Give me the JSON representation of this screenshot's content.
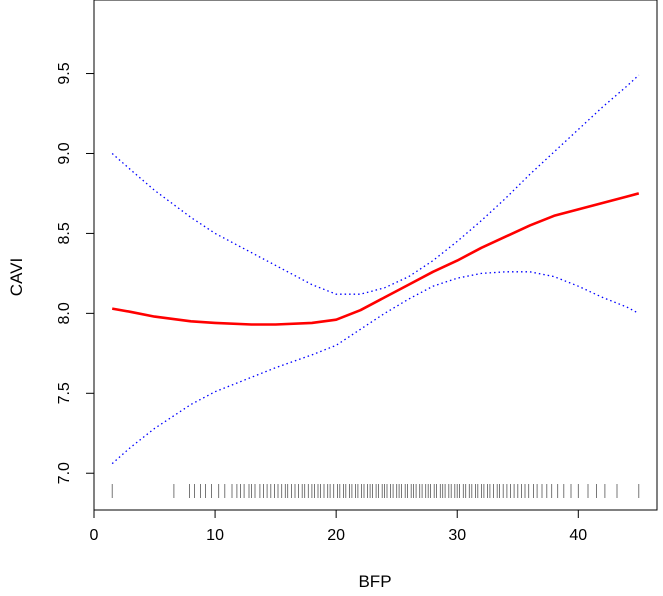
{
  "chart_data": {
    "type": "line",
    "title": "",
    "xlabel": "BFP",
    "ylabel": "CAVI",
    "xlim": [
      0.0,
      46.5
    ],
    "ylim": [
      6.77,
      9.96
    ],
    "xticks": [
      0,
      10,
      20,
      30,
      40
    ],
    "xtick_labels": [
      "0",
      "10",
      "20",
      "30",
      "40"
    ],
    "yticks": [
      7.0,
      7.5,
      8.0,
      8.5,
      9.0,
      9.5
    ],
    "ytick_labels": [
      "7.0",
      "7.5",
      "8.0",
      "8.5",
      "9.0",
      "9.5"
    ],
    "grid": false,
    "legend": "none",
    "series": [
      {
        "role": "fit",
        "color": "#ff0000",
        "style": "solid",
        "x": [
          1.5,
          3,
          5,
          8,
          10,
          13,
          15,
          18,
          20,
          22,
          24,
          26,
          28,
          30,
          32,
          34,
          36,
          38,
          40,
          42,
          44,
          45
        ],
        "y": [
          8.03,
          8.01,
          7.98,
          7.95,
          7.94,
          7.93,
          7.93,
          7.94,
          7.96,
          8.02,
          8.1,
          8.18,
          8.26,
          8.33,
          8.41,
          8.48,
          8.55,
          8.61,
          8.65,
          8.69,
          8.73,
          8.75
        ]
      },
      {
        "role": "upper-ci",
        "color": "#0000ff",
        "style": "dotted",
        "x": [
          1.5,
          3,
          5,
          8,
          10,
          13,
          15,
          18,
          20,
          22,
          24,
          26,
          28,
          30,
          32,
          34,
          36,
          38,
          40,
          42,
          44,
          45
        ],
        "y": [
          9.0,
          8.9,
          8.77,
          8.6,
          8.5,
          8.38,
          8.3,
          8.18,
          8.12,
          8.12,
          8.16,
          8.23,
          8.33,
          8.45,
          8.58,
          8.72,
          8.87,
          9.01,
          9.15,
          9.29,
          9.42,
          9.49
        ]
      },
      {
        "role": "lower-ci",
        "color": "#0000ff",
        "style": "dotted",
        "x": [
          1.5,
          3,
          5,
          8,
          10,
          13,
          15,
          18,
          20,
          22,
          24,
          26,
          28,
          30,
          32,
          34,
          36,
          38,
          40,
          42,
          44,
          45
        ],
        "y": [
          7.06,
          7.16,
          7.28,
          7.43,
          7.51,
          7.6,
          7.66,
          7.74,
          7.8,
          7.9,
          8.0,
          8.09,
          8.17,
          8.22,
          8.25,
          8.26,
          8.26,
          8.23,
          8.17,
          8.1,
          8.04,
          8.0
        ]
      }
    ],
    "rug": {
      "color": "#555555",
      "x": [
        1.5,
        6.6,
        7.9,
        8.3,
        8.8,
        9.2,
        9.7,
        10.3,
        10.8,
        11.4,
        11.8,
        12.1,
        12.4,
        12.8,
        13.0,
        13.3,
        13.7,
        14.0,
        14.3,
        14.6,
        14.9,
        15.2,
        15.5,
        15.8,
        16.0,
        16.3,
        16.6,
        16.9,
        17.2,
        17.4,
        17.7,
        18.0,
        18.2,
        18.5,
        18.7,
        19.0,
        19.3,
        19.5,
        19.8,
        20.1,
        20.3,
        20.6,
        20.8,
        21.1,
        21.3,
        21.6,
        21.8,
        22.1,
        22.3,
        22.6,
        22.8,
        23.0,
        23.3,
        23.5,
        23.8,
        24.0,
        24.2,
        24.5,
        24.7,
        25.0,
        25.2,
        25.4,
        25.7,
        25.9,
        26.2,
        26.4,
        26.6,
        26.9,
        27.1,
        27.4,
        27.6,
        27.8,
        28.1,
        28.3,
        28.6,
        28.8,
        29.0,
        29.3,
        29.5,
        29.8,
        30.0,
        30.2,
        30.5,
        30.7,
        31.0,
        31.2,
        31.5,
        31.7,
        32.0,
        32.2,
        32.5,
        32.7,
        33.0,
        33.3,
        33.5,
        33.8,
        34.1,
        34.4,
        34.7,
        35.0,
        35.3,
        35.6,
        35.9,
        36.3,
        36.6,
        37.0,
        37.4,
        37.8,
        38.3,
        38.8,
        39.4,
        40.0,
        40.8,
        41.5,
        42.2,
        43.2,
        45.0
      ]
    }
  }
}
